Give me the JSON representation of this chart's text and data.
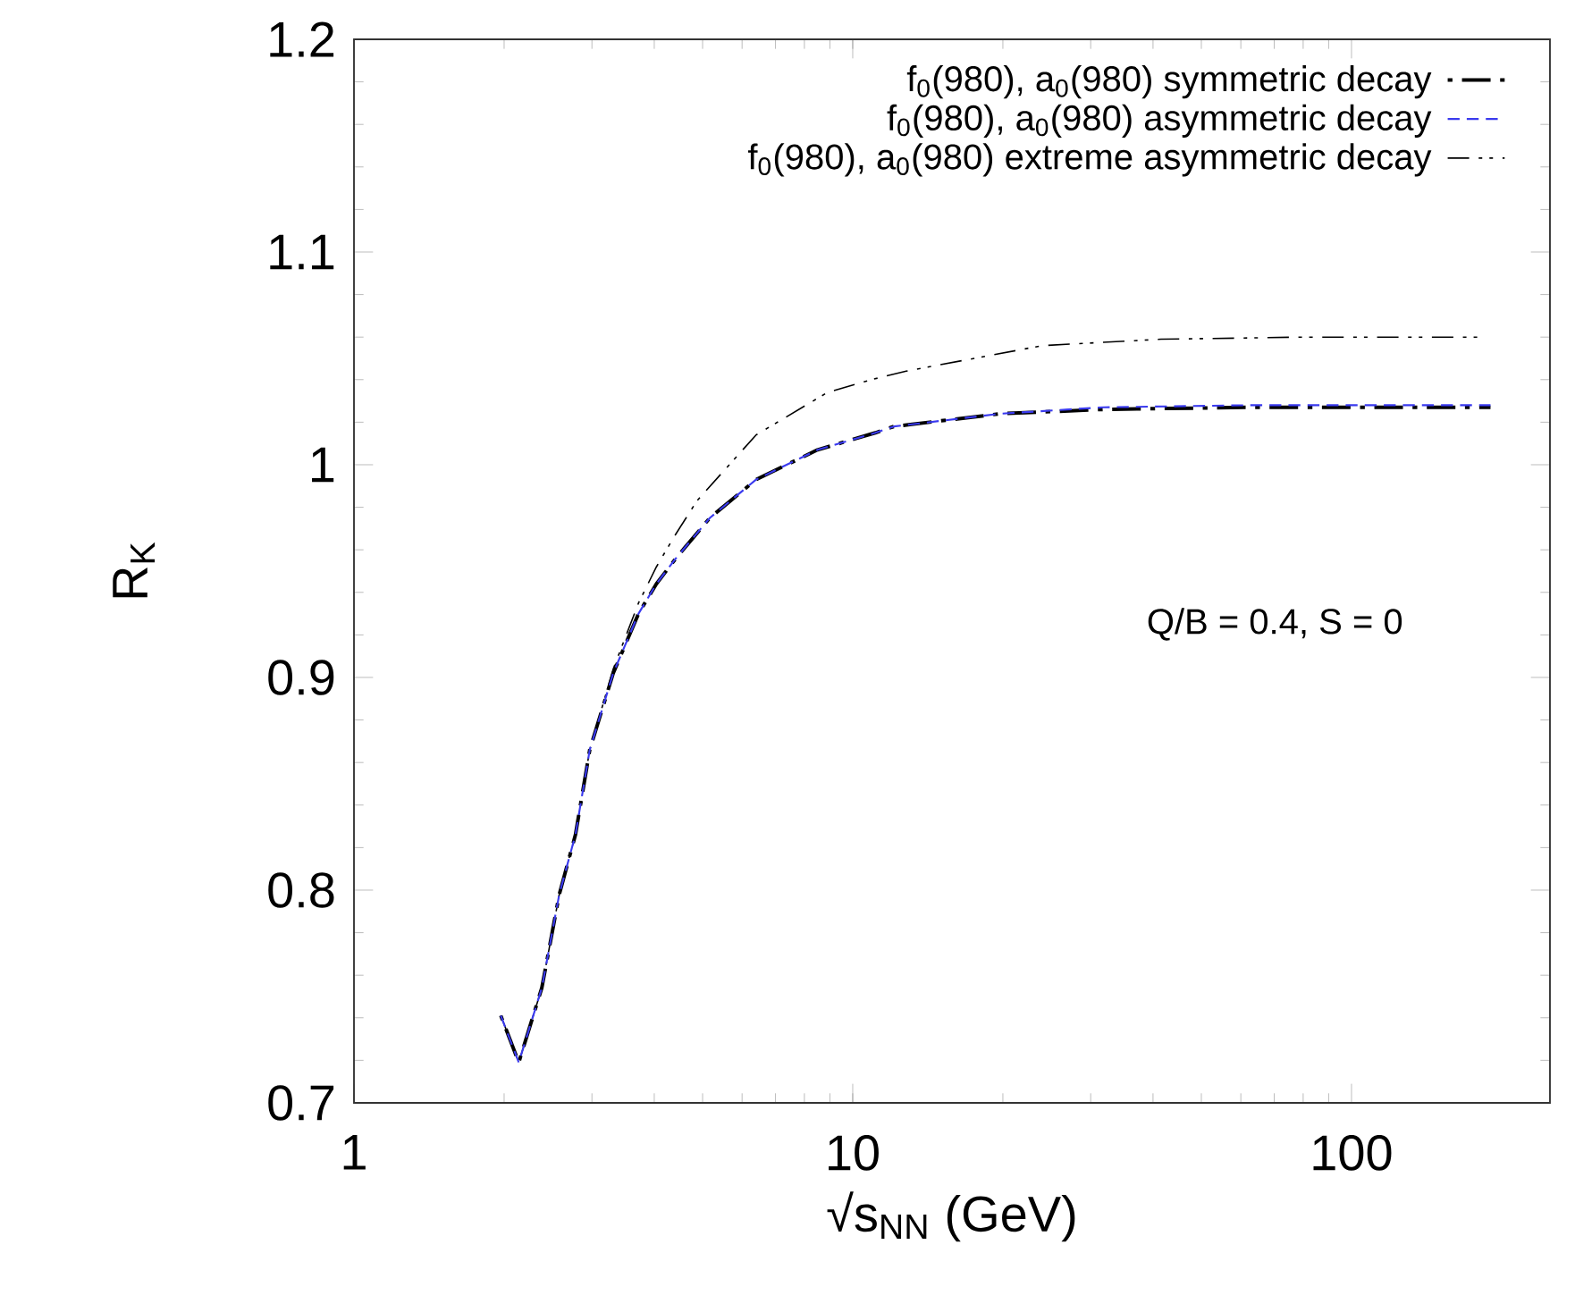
{
  "chart_data": {
    "type": "line",
    "xlabel": "√s$_{NN}$ (GeV)",
    "ylabel": "R$_{K}$",
    "log": "x",
    "xlim": [
      1,
      250
    ],
    "ylim": [
      0.7,
      1.2
    ],
    "xticks": [
      1,
      10,
      100
    ],
    "yticks": [
      0.7,
      0.8,
      0.9,
      1,
      1.1,
      1.2
    ],
    "grid": false,
    "legend": "top right",
    "marker": "none",
    "annotations": [
      "Q/B = 0.4, S = 0"
    ],
    "series": [
      {
        "name": "f$_{0}$(980), a$_{0}$(980) symmetric decay",
        "color": "#000000",
        "line_style": "dashdot",
        "x": [
          1.97,
          2.14,
          2.38,
          2.58,
          2.78,
          2.97,
          3.31,
          3.72,
          4.04,
          4.42,
          5.17,
          6.4,
          8.5,
          11.1,
          12.1,
          19.8,
          31.8,
          63,
          190
        ],
        "values": [
          0.741,
          0.719,
          0.754,
          0.798,
          0.826,
          0.866,
          0.902,
          0.93,
          0.944,
          0.956,
          0.975,
          0.993,
          1.007,
          1.015,
          1.018,
          1.024,
          1.026,
          1.027,
          1.027
        ]
      },
      {
        "name": "f$_{0}$(980), a$_{0}$(980) asymmetric decay",
        "color": "#3a3aee",
        "line_style": "dashed",
        "x": [
          1.97,
          2.14,
          2.38,
          2.58,
          2.78,
          2.97,
          3.31,
          3.72,
          4.04,
          4.42,
          5.17,
          6.4,
          8.5,
          11.1,
          12.1,
          19.8,
          31.8,
          63,
          190
        ],
        "values": [
          0.741,
          0.719,
          0.754,
          0.798,
          0.826,
          0.866,
          0.902,
          0.93,
          0.944,
          0.956,
          0.975,
          0.993,
          1.007,
          1.015,
          1.018,
          1.024,
          1.027,
          1.028,
          1.028
        ]
      },
      {
        "name": "f$_{0}$(980), a$_{0}$(980) extreme asymmetric decay",
        "color": "#000000",
        "line_style": "dashdotdot",
        "x": [
          1.97,
          2.14,
          2.38,
          2.58,
          2.78,
          2.97,
          3.31,
          3.72,
          4.04,
          4.38,
          4.87,
          6.4,
          8.9,
          10.9,
          12.8,
          24,
          41.5,
          80,
          180
        ],
        "values": [
          0.741,
          0.719,
          0.754,
          0.798,
          0.826,
          0.866,
          0.904,
          0.935,
          0.952,
          0.966,
          0.983,
          1.014,
          1.034,
          1.04,
          1.044,
          1.056,
          1.059,
          1.06,
          1.06
        ]
      }
    ]
  }
}
